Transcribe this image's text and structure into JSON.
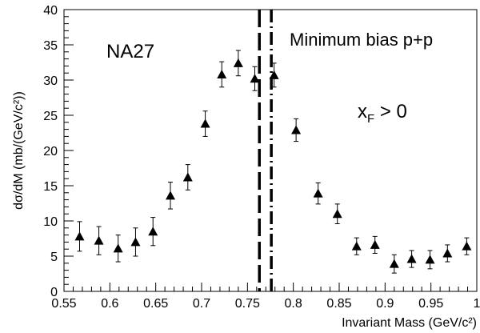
{
  "chart_data": {
    "type": "scatter",
    "xlabel": "Invariant Mass (GeV/c²)",
    "ylabel": "dσ/dM (mb/(GeV/c²))",
    "xlim": [
      0.55,
      1.0
    ],
    "ylim": [
      0,
      40
    ],
    "x_ticks": [
      "0.55",
      "0.6",
      "0.65",
      "0.7",
      "0.75",
      "0.8",
      "0.85",
      "0.9",
      "0.95",
      "1"
    ],
    "y_ticks": [
      "0",
      "5",
      "10",
      "15",
      "20",
      "25",
      "30",
      "35",
      "40"
    ],
    "annotations": {
      "experiment": "NA27",
      "process": "Minimum bias p+p",
      "cut_main": "x",
      "cut_sub": "F",
      "cut_rest": " > 0"
    },
    "vertical_lines": [
      {
        "x": 0.763,
        "style": "dashed"
      },
      {
        "x": 0.776,
        "style": "dash-dot"
      }
    ],
    "series": [
      {
        "marker": "triangle",
        "x": [
          0.567,
          0.588,
          0.609,
          0.628,
          0.647,
          0.666,
          0.685,
          0.704,
          0.722,
          0.74,
          0.758,
          0.779,
          0.803,
          0.827,
          0.848,
          0.869,
          0.889,
          0.91,
          0.929,
          0.949,
          0.968,
          0.989
        ],
        "y": [
          7.8,
          7.2,
          6.1,
          7.0,
          8.5,
          13.6,
          16.2,
          23.8,
          30.8,
          32.4,
          30.2,
          30.7,
          22.9,
          13.9,
          11.0,
          6.4,
          6.6,
          3.9,
          4.6,
          4.5,
          5.4,
          6.4
        ],
        "yerr": [
          2.1,
          2.0,
          1.9,
          2.0,
          2.0,
          1.9,
          1.8,
          1.8,
          1.8,
          1.8,
          1.7,
          1.7,
          1.6,
          1.5,
          1.4,
          1.2,
          1.2,
          1.3,
          1.2,
          1.3,
          1.2,
          1.2
        ]
      }
    ]
  }
}
